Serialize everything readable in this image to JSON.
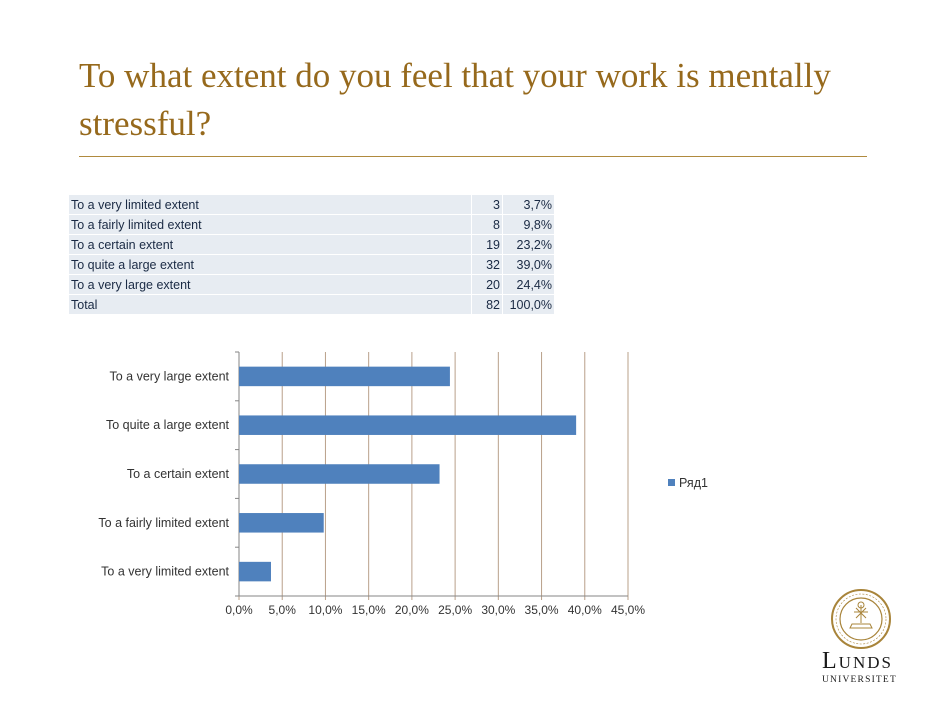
{
  "slide": {
    "title": "To what extent do you feel that your work is mentally stressful?"
  },
  "table": {
    "rows": [
      {
        "label": "To a very limited extent",
        "count": "3",
        "percent": "3,7%"
      },
      {
        "label": "To a fairly limited extent",
        "count": "8",
        "percent": "9,8%"
      },
      {
        "label": "To a certain extent",
        "count": "19",
        "percent": "23,2%"
      },
      {
        "label": "To quite a large extent",
        "count": "32",
        "percent": "39,0%"
      },
      {
        "label": "To a very large extent",
        "count": "20",
        "percent": "24,4%"
      },
      {
        "label": "Total",
        "count": "82",
        "percent": "100,0%"
      }
    ]
  },
  "chart_data": {
    "type": "bar",
    "orientation": "horizontal",
    "categories": [
      "To a very limited extent",
      "To a fairly limited extent",
      "To a certain extent",
      "To quite a large extent",
      "To a very large extent"
    ],
    "series": [
      {
        "name": "Ряд1",
        "values": [
          3.7,
          9.8,
          23.2,
          39.0,
          24.4
        ],
        "color": "#4f81bd"
      }
    ],
    "xlim": [
      0,
      45
    ],
    "x_ticks": [
      0,
      5,
      10,
      15,
      20,
      25,
      30,
      35,
      40,
      45
    ],
    "x_tick_labels": [
      "0,0%",
      "5,0%",
      "10,0%",
      "15,0%",
      "20,0%",
      "25,0%",
      "30,0%",
      "35,0%",
      "40,0%",
      "45,0%"
    ],
    "grid": "vertical",
    "legend_position": "right",
    "title": "",
    "xlabel": "",
    "ylabel": ""
  },
  "logo": {
    "name_first": "L",
    "name_rest": "UNDS",
    "sub": "UNIVERSITET",
    "seal_text": "LUNDS UNIVERSITET 1666"
  },
  "colors": {
    "title": "#96691c",
    "rule": "#b08a3e",
    "bar": "#4f81bd",
    "grid": "#b9a08a",
    "table_bg": "#e7ecf2"
  }
}
